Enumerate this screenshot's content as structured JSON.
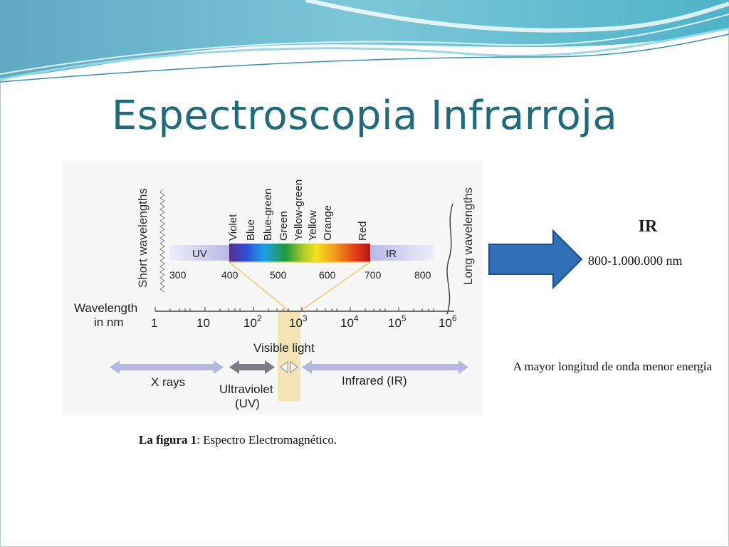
{
  "slide": {
    "title": "Espectroscopia Infrarroja"
  },
  "figure": {
    "short_label": "Short wavelengths",
    "long_label": "Long wavelengths",
    "colors": [
      "Violet",
      "Blue",
      "Blue-green",
      "Green",
      "Yellow-green",
      "Yellow",
      "Orange",
      "Red"
    ],
    "band_uv": "UV",
    "band_ir": "IR",
    "nm_ticks": [
      "300",
      "400",
      "500",
      "600",
      "700",
      "800"
    ],
    "wavelength_label_1": "Wavelength",
    "wavelength_label_2": "in nm",
    "log_ticks": [
      {
        "base": "1",
        "exp": ""
      },
      {
        "base": "10",
        "exp": ""
      },
      {
        "base": "10",
        "exp": "2"
      },
      {
        "base": "10",
        "exp": "3"
      },
      {
        "base": "10",
        "exp": "4"
      },
      {
        "base": "10",
        "exp": "5"
      },
      {
        "base": "10",
        "exp": "6"
      }
    ],
    "visible_light": "Visible light",
    "xrays": "X rays",
    "uv_1": "Ultraviolet",
    "uv_2": "(UV)",
    "infrared": "Infrared (IR)"
  },
  "caption": {
    "bold": "La figura 1",
    "rest": ": Espectro Electromagnético."
  },
  "ir_box": {
    "title": "IR",
    "range": "800-1.000.000 nm"
  },
  "note": "A mayor longitud de onda menor energía",
  "colors": {
    "title": "#1f6b7c",
    "arrow": "#2f6fb7",
    "header_teal": "#4fb3c8"
  }
}
